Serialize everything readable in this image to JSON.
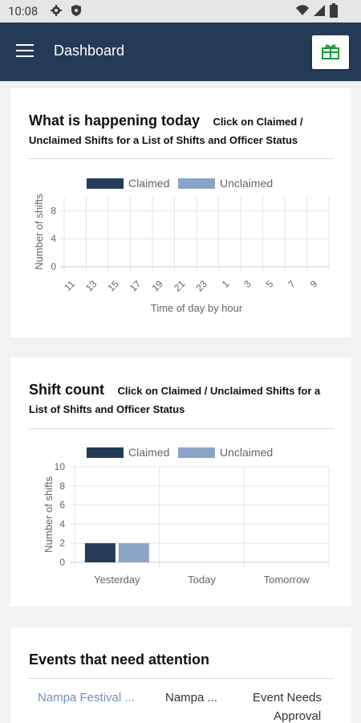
{
  "status_bar": {
    "time": "10:08",
    "left_icons": [
      "gear-icon",
      "shield-icon"
    ],
    "right_icons": [
      "wifi-icon",
      "signal-icon",
      "battery-icon"
    ]
  },
  "app_bar": {
    "title": "Dashboard",
    "menu_icon": "hamburger-menu-icon",
    "action_icon": "gift-icon",
    "background": "#243b57"
  },
  "today_card": {
    "title": "What is happening today",
    "subtitle_line1": "Click on Claimed /",
    "subtitle_line2": "Unclaimed Shifts for a List of Shifts and Officer Status"
  },
  "shift_count_card": {
    "title": "Shift count",
    "subtitle_line1": "Click on Claimed / Unclaimed Shifts for a",
    "subtitle_line2": "List of Shifts and Officer Status"
  },
  "events_card": {
    "title": "Events that need attention",
    "rows": [
      {
        "event": "Nampa Festival ...",
        "location": "Nampa ...",
        "status_line1": "Event Needs",
        "status_line2": "Approval"
      }
    ]
  },
  "colors": {
    "claimed": "#243b57",
    "unclaimed": "#8aa4c8",
    "link": "#6f8fc0"
  },
  "chart_data": [
    {
      "type": "bar",
      "legend": [
        "Claimed",
        "Unclaimed"
      ],
      "legend_placement": "top",
      "categories": [
        "11",
        "13",
        "15",
        "17",
        "19",
        "21",
        "23",
        "1",
        "3",
        "5",
        "7",
        "9"
      ],
      "series": [
        {
          "name": "Claimed",
          "values": [
            0,
            0,
            0,
            0,
            0,
            0,
            0,
            0,
            0,
            0,
            0,
            0
          ]
        },
        {
          "name": "Unclaimed",
          "values": [
            0,
            0,
            0,
            0,
            0,
            0,
            0,
            0,
            0,
            0,
            0,
            0
          ]
        }
      ],
      "xlabel": "Time of day by hour",
      "ylabel": "Number of shifts",
      "yticks": [
        "8",
        "4",
        "0"
      ],
      "ylim": [
        0,
        10
      ],
      "grid": true
    },
    {
      "type": "bar",
      "legend": [
        "Claimed",
        "Unclaimed"
      ],
      "legend_placement": "top",
      "categories": [
        "Yesterday",
        "Today",
        "Tomorrow"
      ],
      "series": [
        {
          "name": "Claimed",
          "values": [
            2,
            0,
            0
          ]
        },
        {
          "name": "Unclaimed",
          "values": [
            2,
            0,
            0
          ]
        }
      ],
      "xlabel": "",
      "ylabel": "Number of shifts",
      "yticks": [
        "10",
        "8",
        "6",
        "4",
        "2",
        "0"
      ],
      "ylim": [
        0,
        10
      ],
      "grid": true
    }
  ]
}
